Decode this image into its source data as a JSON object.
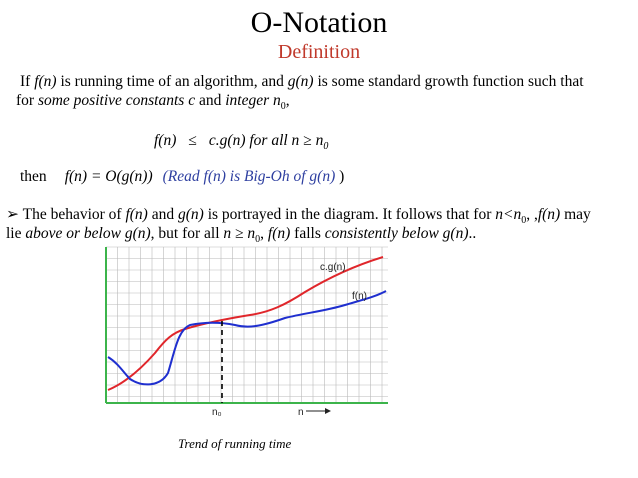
{
  "title": "O-Notation",
  "subtitle": "Definition",
  "para1": {
    "t1": "If ",
    "fn": "f(n)",
    "t2": " is running time of an algorithm, and ",
    "gn": "g(n)",
    "t3": " is some standard growth function such that",
    "t4": "for ",
    "some": "some positive constants c",
    "t5": " and ",
    "intn": "integer n",
    "sub0": "0",
    "t6": ","
  },
  "formula": {
    "lhs": "f(n)",
    "op": "≤",
    "rhs": "c.g(n) for all n ≥ n",
    "sub0": "0"
  },
  "then_line": {
    "then": "then",
    "eq": "f(n) = O(g(n))",
    "read": "(Read f(n) is Big-Oh of g(n)",
    "close": " )"
  },
  "bullet": {
    "marker": "➢",
    "t1": " The behavior of ",
    "fn": "f(n)",
    "t2": " and ",
    "gn": "g(n)",
    "t3": " is portrayed in the diagram. It follows that for ",
    "nlt": "n<n",
    "sub0a": "0",
    "t4": ", ,",
    "fn2": "f(n)",
    "t5": " may",
    "t6": "lie ",
    "above": "above or below g(n)",
    "t7": ", but for all ",
    "nge": "n ≥ n",
    "sub0b": "0",
    "t8": ", ",
    "fn3": "f(n)",
    "t9": " falls ",
    "consistently": "consistently below g(n)",
    "t10": ".."
  },
  "diagram": {
    "cg_label": "c.g(n)",
    "f_label": "f(n)",
    "n0_label": "n₀",
    "n_label": "n",
    "colors": {
      "cg": "#e0262b",
      "f": "#1f2fcf",
      "grid": "#b9b9b9",
      "axis": "#3cb44b"
    }
  },
  "caption": "Trend of running time"
}
